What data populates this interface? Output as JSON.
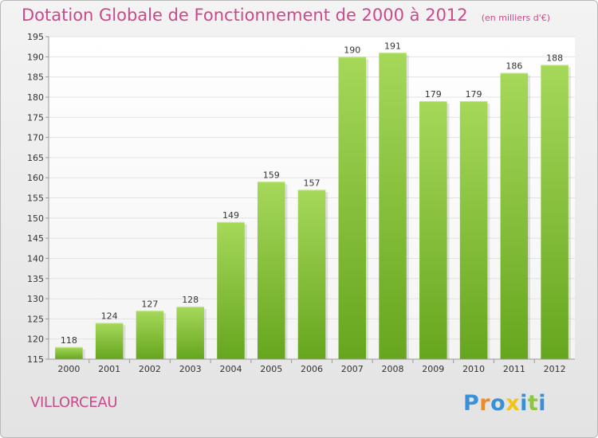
{
  "title": "Dotation Globale de Fonctionnement de 2000 à 2012",
  "unit": "(en milliers d'€)",
  "commune": "VILLORCEAU",
  "logo": {
    "text": "Proxiti",
    "letters": [
      {
        "char": "P",
        "color": "#3a8fd6"
      },
      {
        "char": "r",
        "color": "#f08a24"
      },
      {
        "char": "o",
        "color": "#3a8fd6"
      },
      {
        "char": "x",
        "color": "#f0c419"
      },
      {
        "char": "i",
        "color": "#3a8fd6"
      },
      {
        "char": "t",
        "color": "#8cc63f"
      },
      {
        "char": "i",
        "color": "#3a8fd6"
      }
    ]
  },
  "colors": {
    "bar_top": "#a6d85a",
    "bar_bottom": "#66a61e",
    "accent": "#c94a8a",
    "grid": "#e2e2e2"
  },
  "chart_data": {
    "type": "bar",
    "categories": [
      "2000",
      "2001",
      "2002",
      "2003",
      "2004",
      "2005",
      "2006",
      "2007",
      "2008",
      "2009",
      "2010",
      "2011",
      "2012"
    ],
    "values": [
      118,
      124,
      127,
      128,
      149,
      159,
      157,
      190,
      191,
      179,
      179,
      186,
      188
    ],
    "title": "Dotation Globale de Fonctionnement de 2000 à 2012",
    "ylim": [
      115,
      195
    ],
    "yticks": [
      115,
      120,
      125,
      130,
      135,
      140,
      145,
      150,
      155,
      160,
      165,
      170,
      175,
      180,
      185,
      190,
      195
    ],
    "grid": true,
    "data_labels": true
  }
}
